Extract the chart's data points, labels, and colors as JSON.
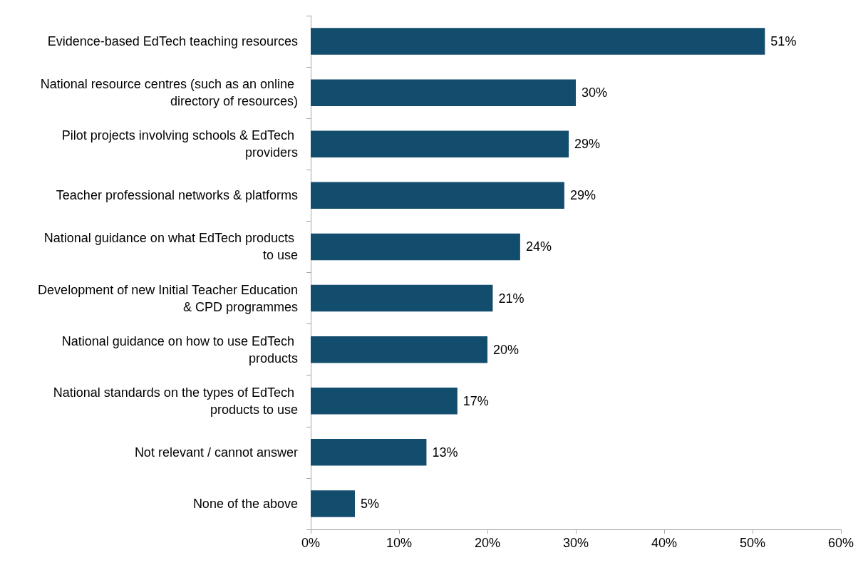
{
  "chart_data": {
    "type": "bar",
    "orientation": "horizontal",
    "categories": [
      "Evidence-based EdTech teaching resources",
      "National resource centres (such as an online directory of resources)",
      "Pilot projects involving schools & EdTech providers",
      "Teacher professional networks & platforms",
      "National guidance on what EdTech products to use",
      "Development of new Initial Teacher Education & CPD programmes",
      "National guidance on how to use EdTech products",
      "National standards on the types of EdTech products to use",
      "Not relevant / cannot answer",
      "None of the above"
    ],
    "values": [
      51.4,
      30,
      29.2,
      28.7,
      23.7,
      20.6,
      20,
      16.6,
      13.1,
      5
    ],
    "value_labels": [
      "51%",
      "30%",
      "29%",
      "29%",
      "24%",
      "21%",
      "20%",
      "17%",
      "13%",
      "5%"
    ],
    "color": "#134d6e",
    "xlim": [
      0,
      60
    ],
    "xticks": [
      {
        "value": 0,
        "label": "0%"
      },
      {
        "value": 10,
        "label": "10%"
      },
      {
        "value": 20,
        "label": "20%"
      },
      {
        "value": 30,
        "label": "30%"
      },
      {
        "value": 40,
        "label": "40%"
      },
      {
        "value": 50,
        "label": "50%"
      },
      {
        "value": 60,
        "label": "60%"
      }
    ],
    "grid": false
  }
}
